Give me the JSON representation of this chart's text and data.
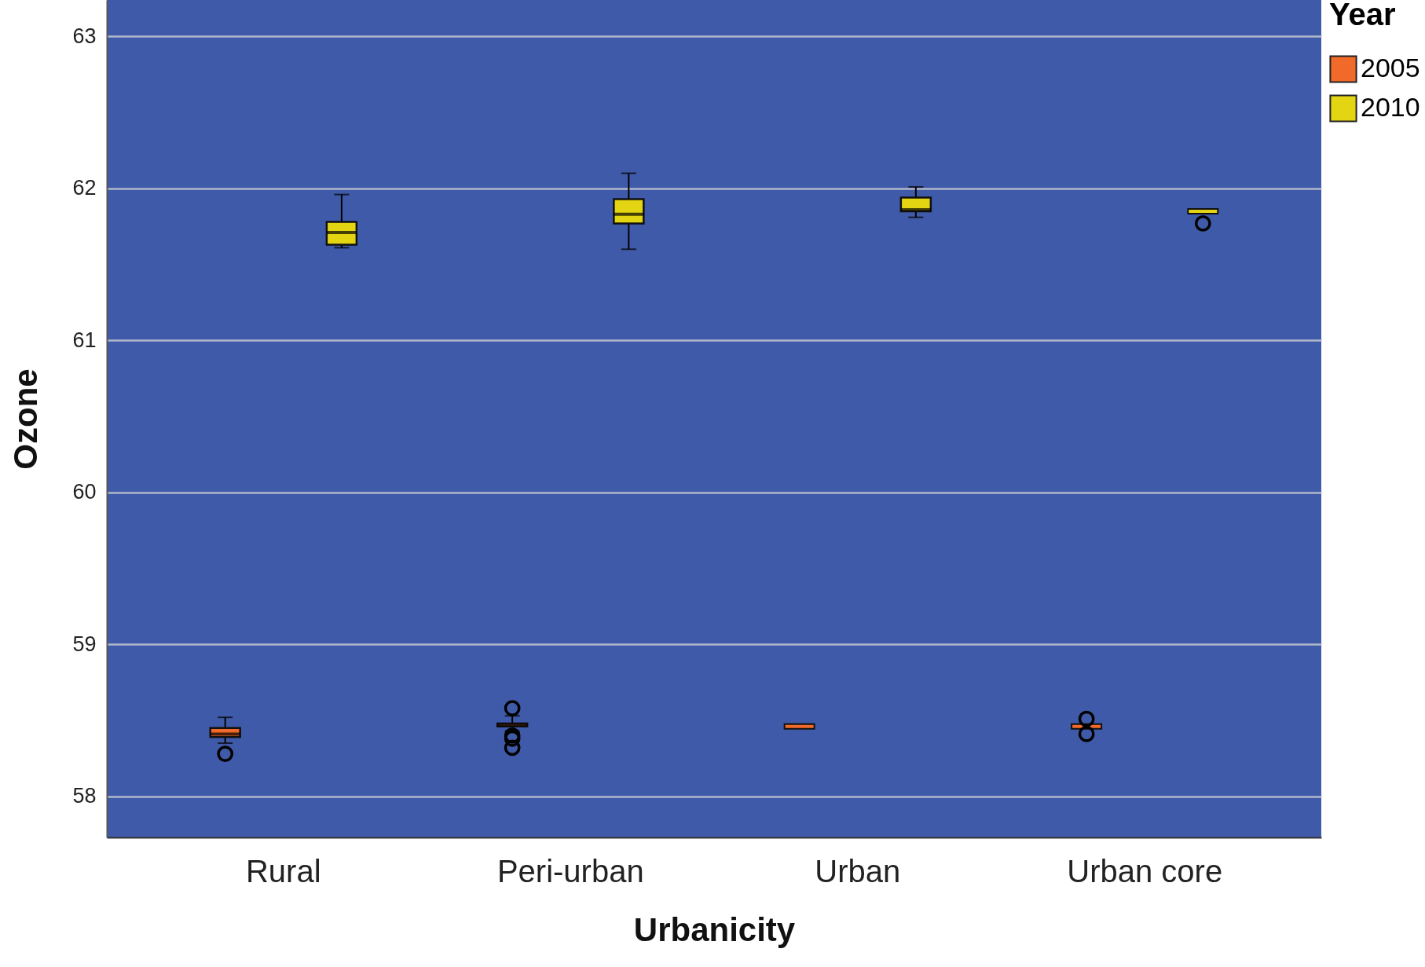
{
  "chart_data": {
    "type": "box",
    "categories": [
      "Rural",
      "Peri-urban",
      "Urban",
      "Urban core"
    ],
    "series": [
      {
        "name": "2005",
        "color": "#f26a2a",
        "boxes": [
          {
            "low": 58.35,
            "q1": 58.39,
            "median": 58.41,
            "q3": 58.45,
            "high": 58.52,
            "outliers": [
              58.28
            ]
          },
          {
            "low": 58.43,
            "q1": 58.46,
            "median": 58.47,
            "q3": 58.48,
            "high": 58.53,
            "outliers": [
              58.58,
              58.4,
              58.38,
              58.32
            ]
          },
          {
            "low": 58.46,
            "q1": 58.46,
            "median": 58.46,
            "q3": 58.46,
            "high": 58.46
          },
          {
            "low": 58.46,
            "q1": 58.46,
            "median": 58.46,
            "q3": 58.46,
            "high": 58.46,
            "outliers": [
              58.51,
              58.41
            ]
          }
        ]
      },
      {
        "name": "2010",
        "color": "#e3d512",
        "boxes": [
          {
            "low": 61.61,
            "q1": 61.63,
            "median": 61.71,
            "q3": 61.78,
            "high": 61.96
          },
          {
            "low": 61.6,
            "q1": 61.77,
            "median": 61.83,
            "q3": 61.93,
            "high": 62.1
          },
          {
            "low": 61.81,
            "q1": 61.85,
            "median": 61.86,
            "q3": 61.94,
            "high": 62.01
          },
          {
            "low": 61.85,
            "q1": 61.85,
            "median": 61.85,
            "q3": 61.85,
            "high": 61.85,
            "outliers": [
              61.77
            ]
          }
        ]
      }
    ],
    "xlabel": "Urbanicity",
    "ylabel": "Ozone",
    "legend_title": "Year",
    "ylim": [
      57.73,
      63.24
    ],
    "yticks": [
      58,
      59,
      60,
      61,
      62,
      63
    ],
    "grid": "y",
    "legend": "top right",
    "marker": "circle"
  }
}
